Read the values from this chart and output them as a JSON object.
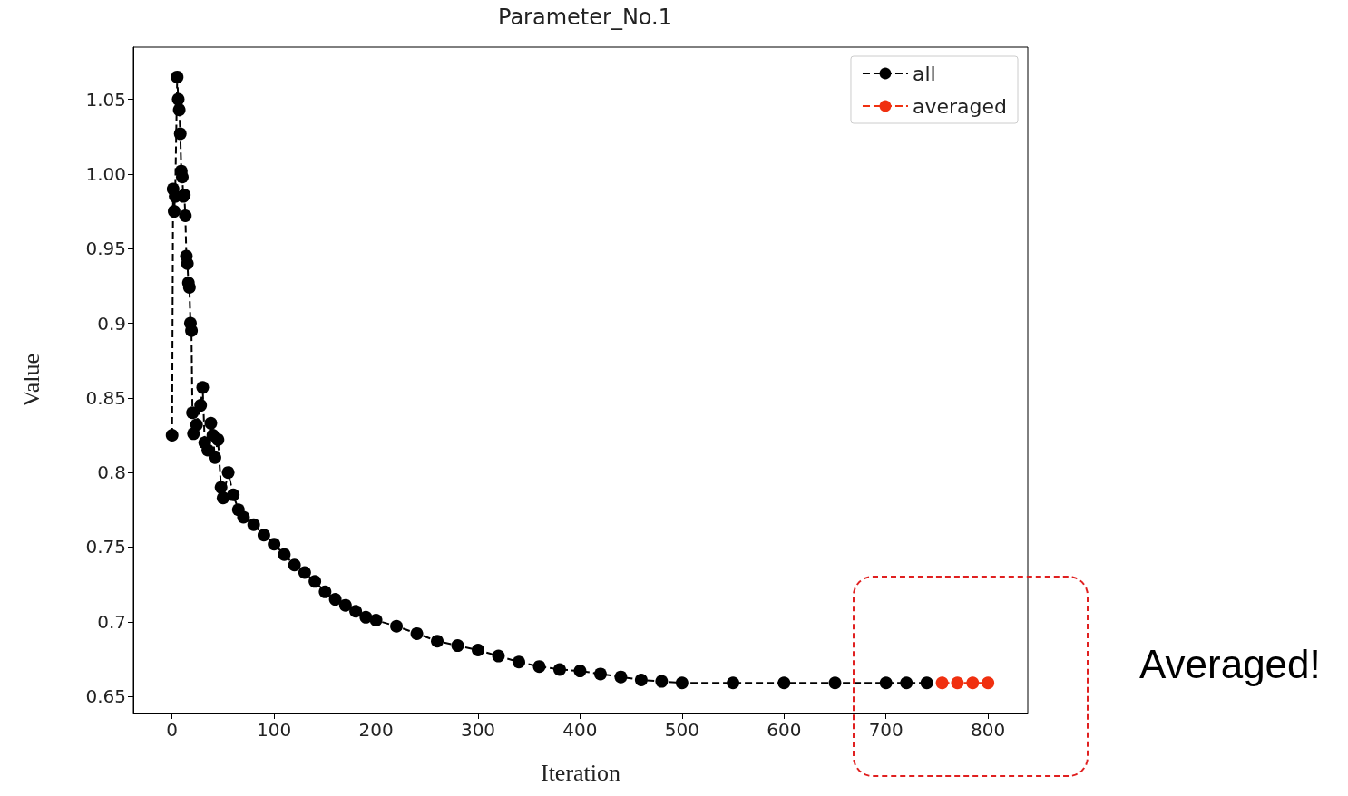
{
  "chart_data": {
    "type": "line",
    "title": "Parameter_No.1",
    "xlabel": "Iteration",
    "ylabel": "Value",
    "xlim": [
      -38,
      839
    ],
    "xticks": [
      0,
      100,
      200,
      300,
      400,
      500,
      600,
      700,
      800
    ],
    "ylim": [
      0.6385,
      1.085
    ],
    "yticks": [
      0.65,
      0.7,
      0.75,
      0.8,
      0.85,
      0.9,
      0.95,
      {
        "value": 1,
        "label": "1.00"
      },
      1.05
    ],
    "series": [
      {
        "name": "all",
        "color": "#000000",
        "x": [
          0,
          1,
          2,
          3,
          5,
          6,
          7,
          8,
          9,
          10,
          11,
          12,
          13,
          14,
          15,
          16,
          17,
          18,
          19,
          20,
          21,
          24,
          28,
          30,
          32,
          35,
          38,
          40,
          42,
          45,
          48,
          50,
          55,
          60,
          65,
          70,
          80,
          90,
          100,
          110,
          120,
          130,
          140,
          150,
          160,
          170,
          180,
          190,
          200,
          220,
          240,
          260,
          280,
          300,
          320,
          340,
          360,
          380,
          400,
          420,
          440,
          460,
          480,
          500,
          550,
          600,
          650,
          700,
          720,
          740
        ],
        "values": [
          0.825,
          0.99,
          0.975,
          0.985,
          1.065,
          1.05,
          1.043,
          1.027,
          1.002,
          0.998,
          0.985,
          0.986,
          0.972,
          0.945,
          0.94,
          0.927,
          0.924,
          0.9,
          0.895,
          0.84,
          0.826,
          0.832,
          0.845,
          0.857,
          0.82,
          0.815,
          0.833,
          0.825,
          0.81,
          0.822,
          0.79,
          0.783,
          0.8,
          0.785,
          0.775,
          0.77,
          0.765,
          0.758,
          0.752,
          0.745,
          0.738,
          0.733,
          0.727,
          0.72,
          0.715,
          0.711,
          0.707,
          0.703,
          0.701,
          0.697,
          0.692,
          0.687,
          0.684,
          0.681,
          0.677,
          0.673,
          0.67,
          0.668,
          0.667,
          0.665,
          0.663,
          0.661,
          0.66,
          0.659,
          0.659,
          0.659,
          0.659,
          0.659,
          0.659,
          0.659
        ]
      },
      {
        "name": "averaged",
        "color": "#f03010",
        "x": [
          755,
          770,
          785,
          800
        ],
        "values": [
          0.659,
          0.659,
          0.659,
          0.659
        ]
      }
    ],
    "annotations": [
      "Averaged!"
    ],
    "legend": "top right",
    "marker": "circle",
    "line_style": "dashed",
    "grid": false
  }
}
